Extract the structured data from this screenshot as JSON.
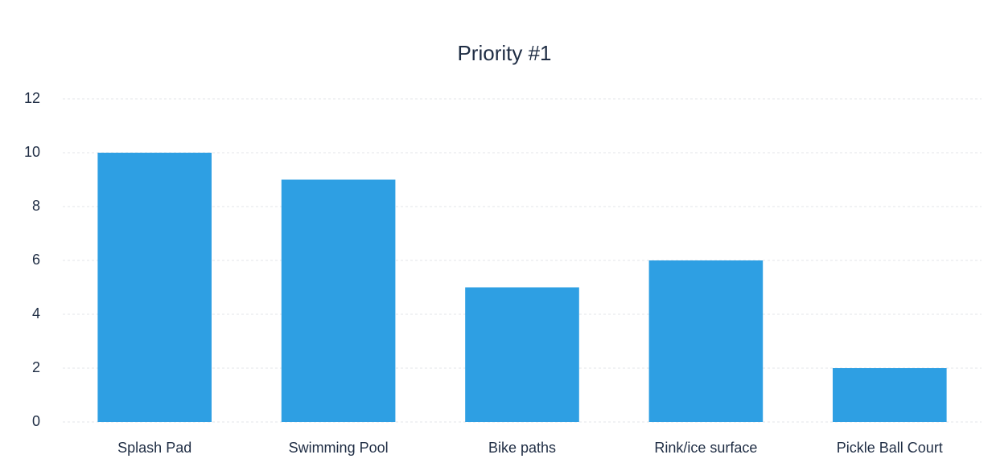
{
  "chart_data": {
    "type": "bar",
    "title": "Priority #1",
    "categories": [
      "Splash Pad",
      "Swimming Pool",
      "Bike paths",
      "Rink/ice surface",
      "Pickle Ball Court"
    ],
    "values": [
      10,
      9,
      5,
      6,
      2
    ],
    "color": "#2e9fe3",
    "ylim": [
      0,
      12
    ],
    "yticks": [
      0,
      2,
      4,
      6,
      8,
      10,
      12
    ],
    "grid": true
  }
}
